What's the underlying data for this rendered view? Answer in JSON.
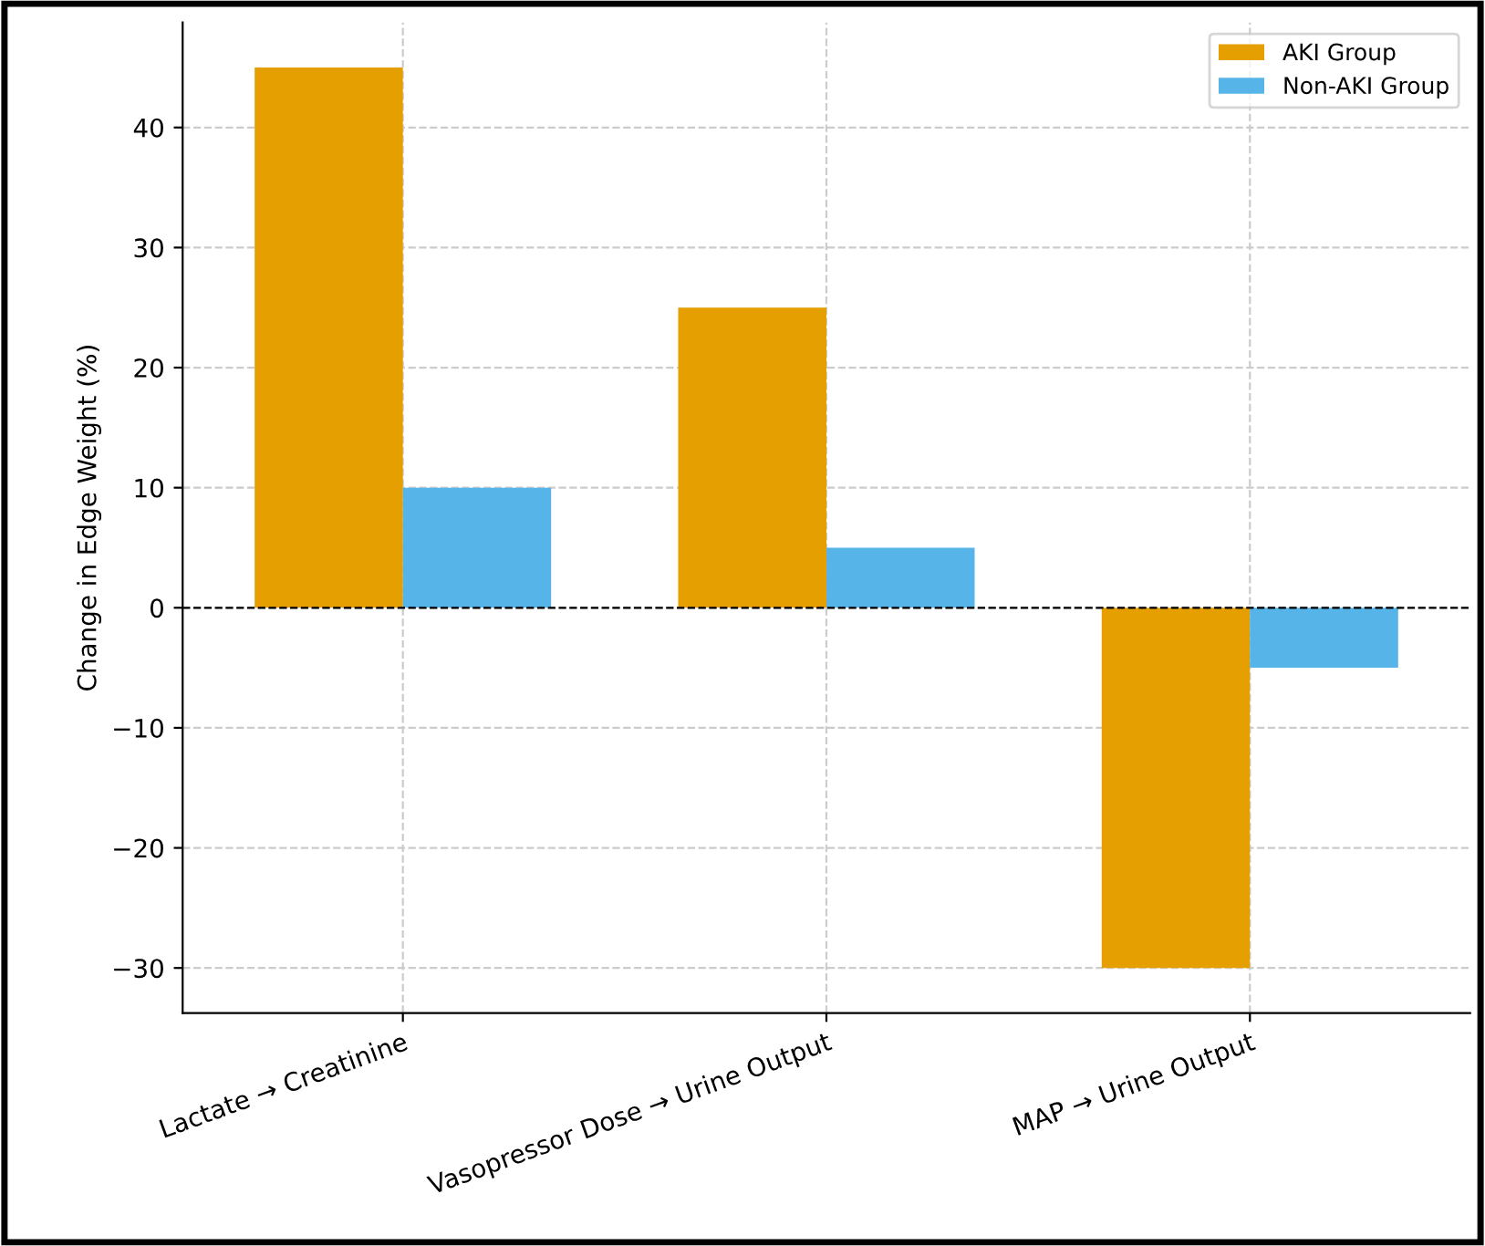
{
  "chart_data": {
    "type": "bar",
    "ylabel": "Change in Edge Weight (%)",
    "categories": [
      "Lactate → Creatinine",
      "Vasopressor Dose → Urine Output",
      "MAP → Urine Output"
    ],
    "series": [
      {
        "name": "AKI Group",
        "color": "#e69f00",
        "values": [
          45,
          25,
          -30
        ]
      },
      {
        "name": "Non-AKI Group",
        "color": "#56b4e9",
        "values": [
          10,
          5,
          -5
        ]
      }
    ],
    "ylim": [
      -33.75,
      48.75
    ],
    "yticks": [
      {
        "value": -30,
        "label": "−30"
      },
      {
        "value": -20,
        "label": "−20"
      },
      {
        "value": -10,
        "label": "−10"
      },
      0,
      10,
      20,
      30,
      40
    ],
    "ref_lines": [
      {
        "axis": "y",
        "value": 0,
        "color": "#000000",
        "line_style": "dashed"
      }
    ],
    "grid": true,
    "legend": "top right"
  }
}
